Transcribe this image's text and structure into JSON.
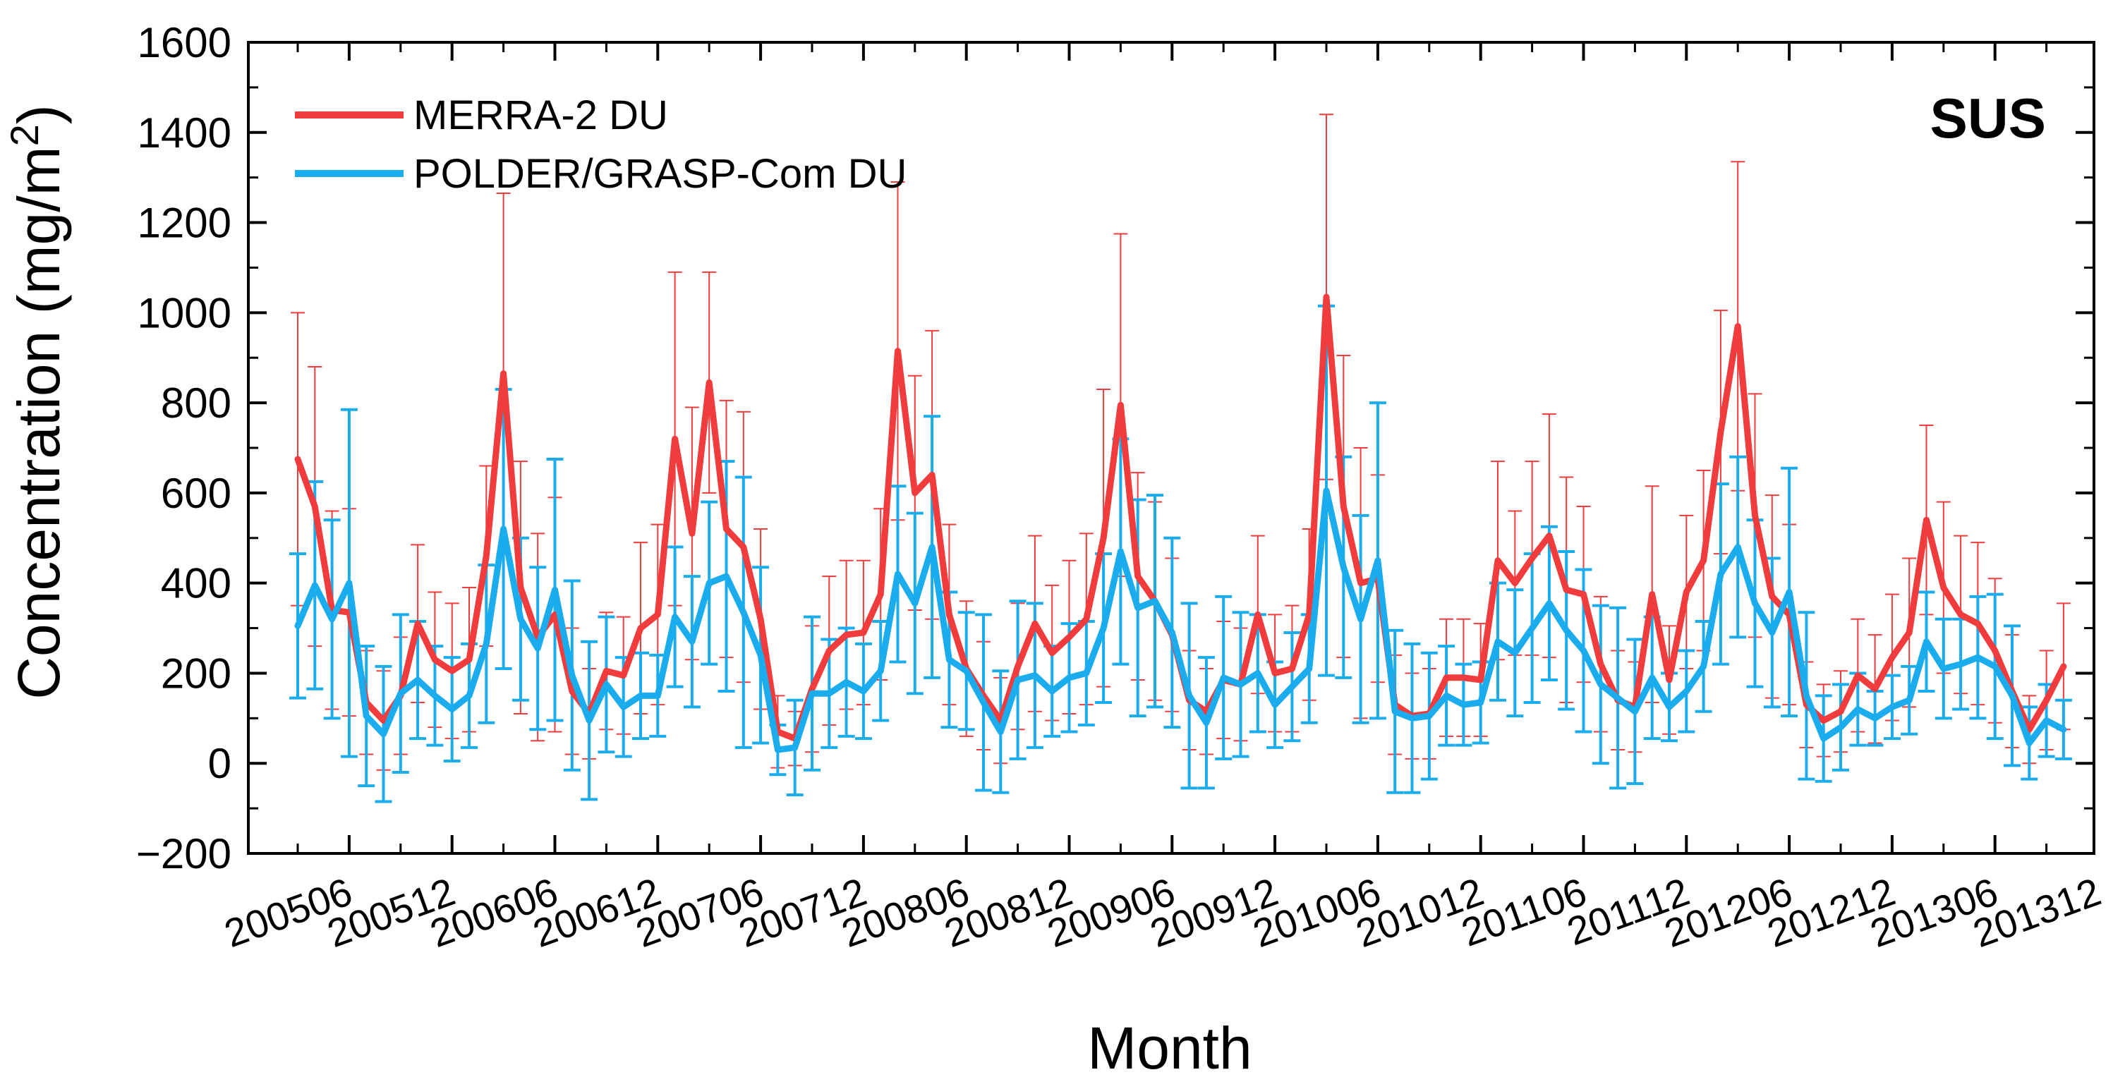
{
  "chart_data": {
    "type": "line",
    "title": "",
    "panel_label": "SUS",
    "xlabel": "Month",
    "ylabel": "Concentration (mg/m",
    "ylabel_sup": "2",
    "ylabel_close": ")",
    "ylim": [
      -200,
      1600
    ],
    "y_ticks": [
      -200,
      0,
      200,
      400,
      600,
      800,
      1000,
      1200,
      1400,
      1600
    ],
    "y_tick_labels": [
      "−200",
      "0",
      "200",
      "400",
      "600",
      "800",
      "1000",
      "1200",
      "1400",
      "1600"
    ],
    "x_start": "200503",
    "x_tick_labels": [
      "200506",
      "200512",
      "200606",
      "200612",
      "200706",
      "200712",
      "200806",
      "200812",
      "200906",
      "200912",
      "201006",
      "201012",
      "201106",
      "201112",
      "201206",
      "201212",
      "201306",
      "201312"
    ],
    "legend_position": "top-left",
    "series": [
      {
        "name": "MERRA-2 DU",
        "color": "#f03c3c",
        "values": [
          675,
          570,
          340,
          335,
          135,
          95,
          150,
          310,
          230,
          205,
          230,
          460,
          865,
          390,
          280,
          330,
          160,
          110,
          205,
          195,
          300,
          330,
          720,
          510,
          845,
          520,
          480,
          320,
          70,
          55,
          165,
          250,
          285,
          290,
          375,
          915,
          600,
          640,
          330,
          210,
          150,
          95,
          215,
          310,
          245,
          280,
          320,
          500,
          795,
          415,
          360,
          285,
          140,
          115,
          185,
          175,
          330,
          200,
          210,
          330,
          1035,
          570,
          400,
          410,
          130,
          105,
          110,
          190,
          190,
          185,
          450,
          400,
          455,
          505,
          385,
          375,
          220,
          140,
          125,
          375,
          185,
          380,
          450,
          735,
          970,
          550,
          370,
          330,
          130,
          95,
          115,
          195,
          165,
          235,
          290,
          540,
          390,
          330,
          310,
          250,
          160,
          75,
          140,
          215
        ],
        "errors": [
          325,
          310,
          220,
          230,
          115,
          110,
          130,
          175,
          150,
          150,
          160,
          200,
          400,
          280,
          230,
          260,
          140,
          100,
          130,
          130,
          190,
          200,
          370,
          280,
          245,
          285,
          300,
          200,
          80,
          60,
          140,
          165,
          165,
          160,
          190,
          375,
          260,
          320,
          200,
          150,
          120,
          95,
          140,
          195,
          150,
          170,
          190,
          330,
          380,
          230,
          220,
          170,
          110,
          95,
          130,
          125,
          175,
          130,
          140,
          190,
          405,
          335,
          300,
          230,
          110,
          95,
          100,
          130,
          130,
          125,
          220,
          160,
          215,
          270,
          250,
          195,
          150,
          110,
          100,
          240,
          120,
          170,
          200,
          270,
          365,
          270,
          225,
          200,
          95,
          80,
          90,
          125,
          120,
          140,
          165,
          210,
          190,
          175,
          180,
          160,
          125,
          75,
          110,
          140
        ]
      },
      {
        "name": "POLDER/GRASP-Com DU",
        "color": "#1aacec",
        "values": [
          305,
          395,
          320,
          400,
          105,
          65,
          155,
          185,
          150,
          120,
          150,
          265,
          520,
          320,
          255,
          385,
          195,
          95,
          175,
          125,
          150,
          150,
          325,
          270,
          400,
          415,
          335,
          240,
          30,
          35,
          155,
          155,
          180,
          160,
          205,
          420,
          355,
          480,
          230,
          205,
          135,
          70,
          185,
          195,
          160,
          190,
          200,
          300,
          470,
          345,
          360,
          290,
          150,
          90,
          190,
          175,
          200,
          130,
          170,
          210,
          605,
          435,
          320,
          450,
          115,
          100,
          105,
          150,
          130,
          135,
          270,
          245,
          300,
          355,
          295,
          250,
          175,
          145,
          115,
          190,
          125,
          160,
          215,
          420,
          480,
          355,
          290,
          380,
          150,
          55,
          80,
          120,
          100,
          125,
          140,
          270,
          210,
          220,
          235,
          215,
          150,
          45,
          95,
          75
        ],
        "errors": [
          160,
          230,
          220,
          385,
          155,
          150,
          175,
          130,
          110,
          115,
          115,
          175,
          310,
          180,
          180,
          290,
          210,
          175,
          150,
          110,
          95,
          90,
          155,
          145,
          180,
          255,
          300,
          195,
          55,
          105,
          170,
          120,
          120,
          105,
          110,
          195,
          200,
          290,
          150,
          130,
          195,
          135,
          175,
          160,
          100,
          120,
          115,
          165,
          250,
          240,
          235,
          210,
          205,
          145,
          180,
          160,
          130,
          95,
          120,
          120,
          410,
          245,
          230,
          350,
          180,
          165,
          140,
          110,
          90,
          90,
          130,
          140,
          165,
          170,
          175,
          180,
          175,
          200,
          160,
          135,
          75,
          90,
          100,
          200,
          200,
          185,
          165,
          275,
          185,
          95,
          95,
          80,
          60,
          70,
          75,
          110,
          110,
          100,
          135,
          160,
          155,
          80,
          80,
          65
        ]
      }
    ]
  }
}
